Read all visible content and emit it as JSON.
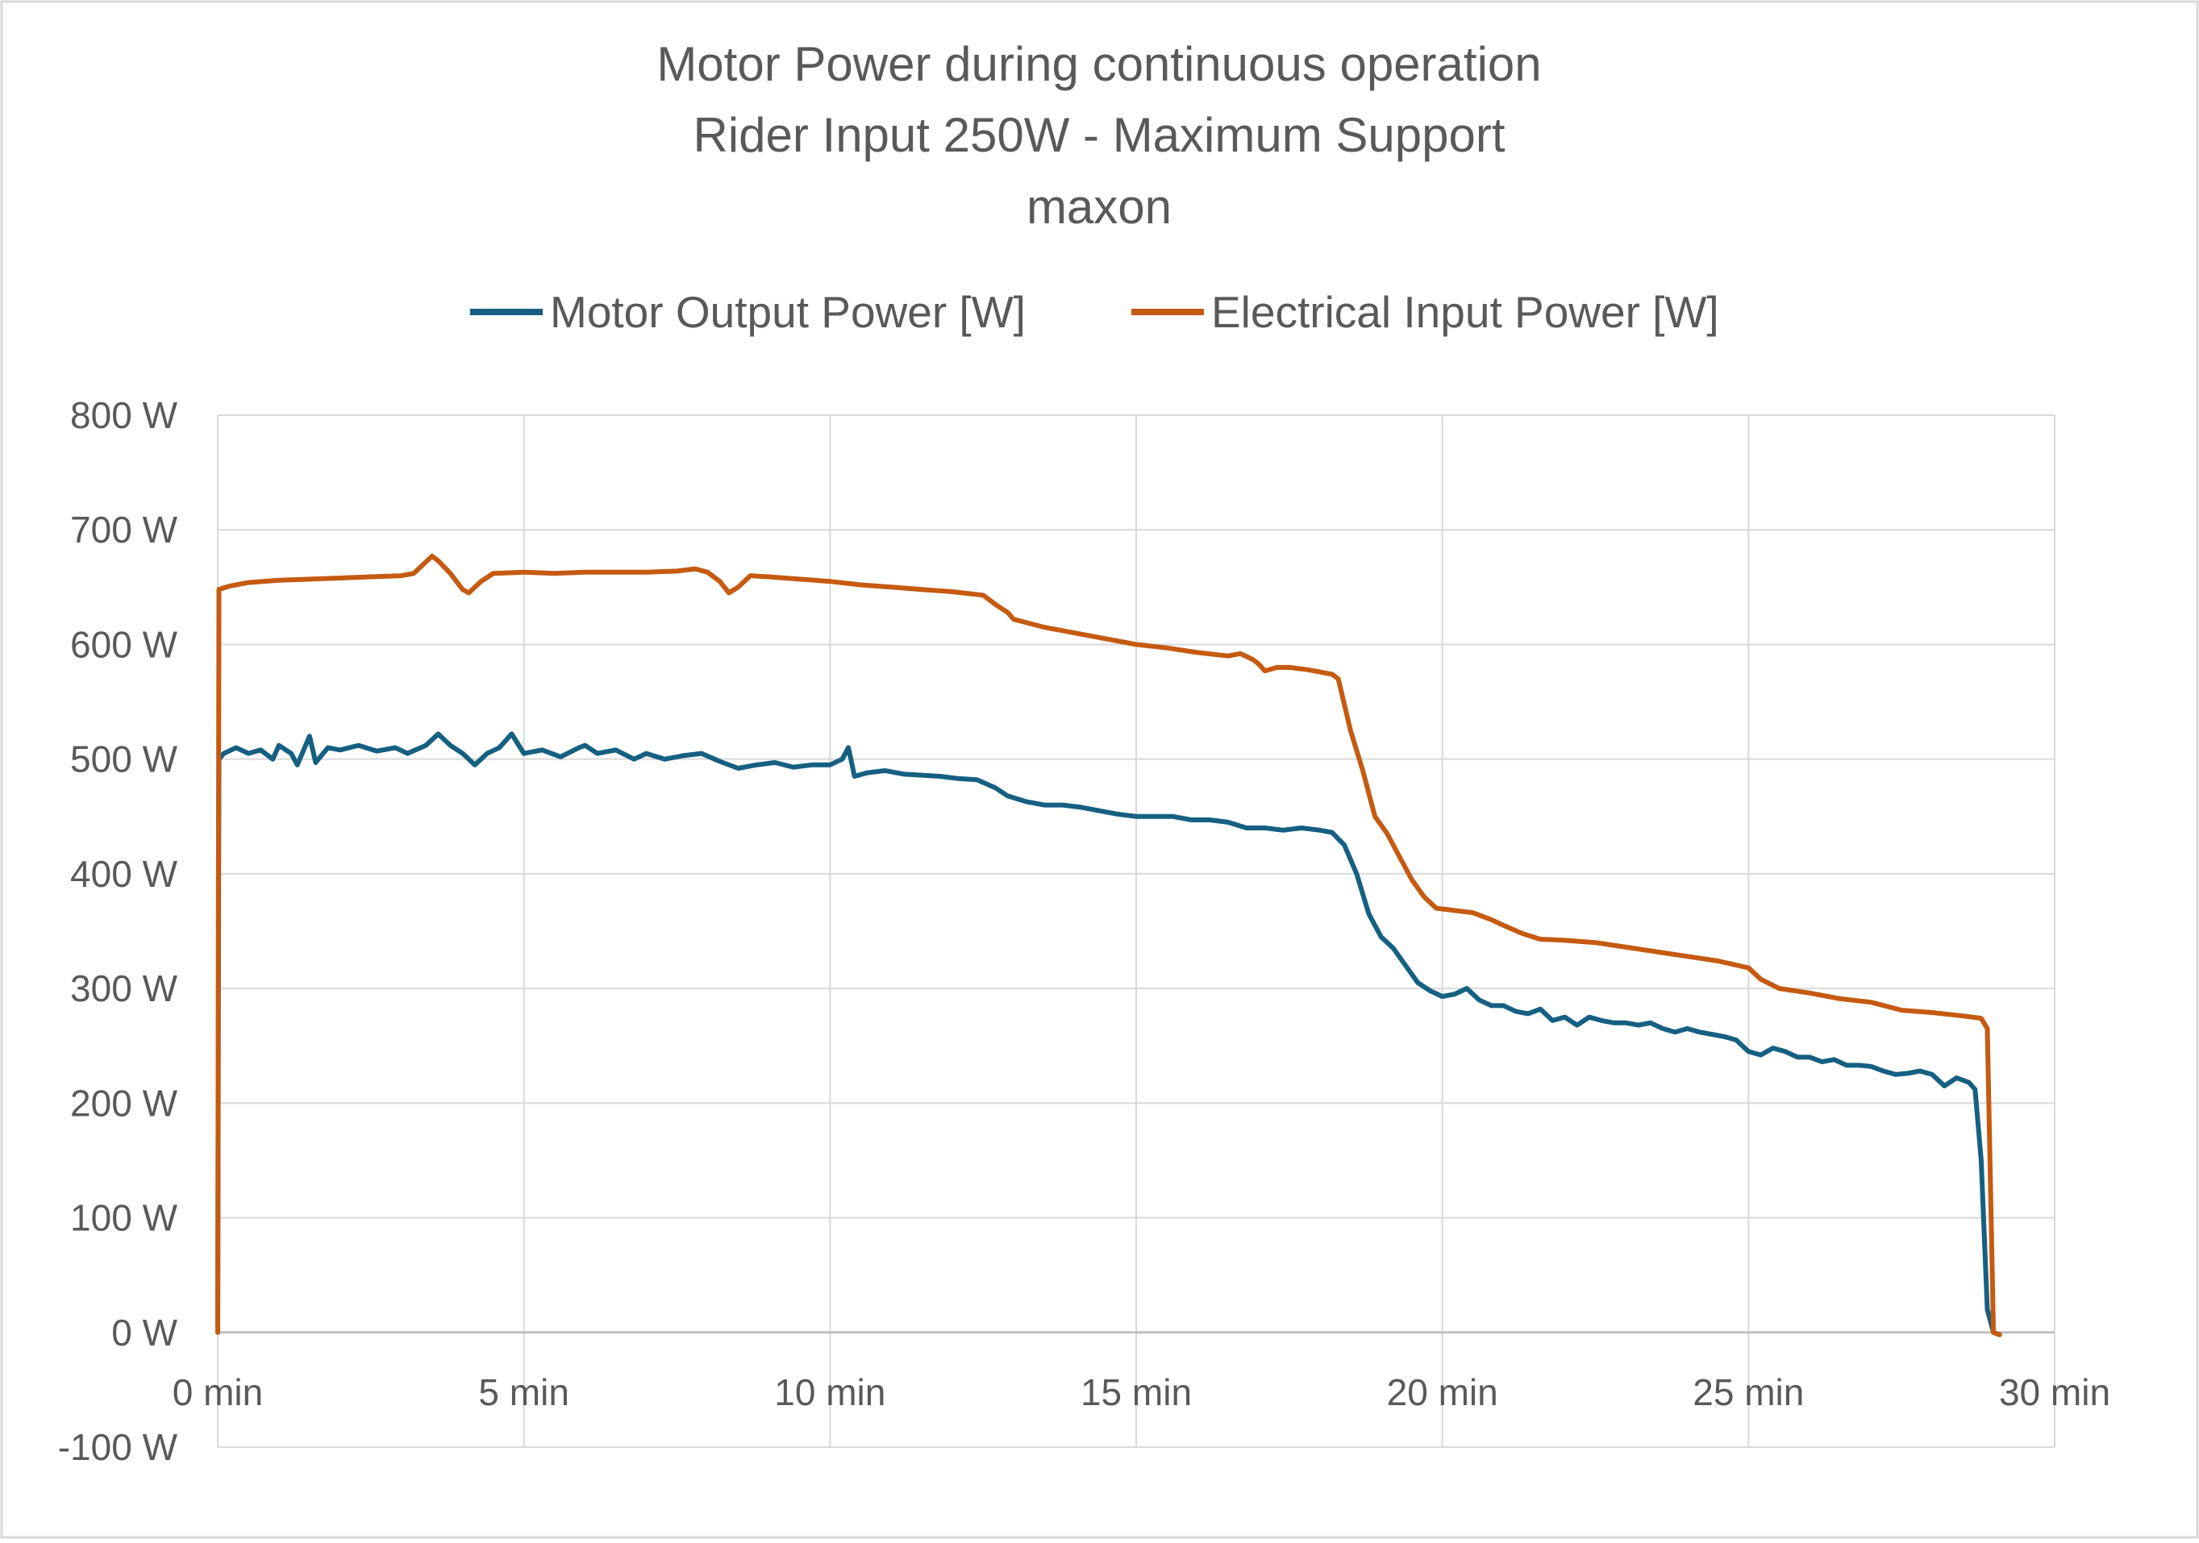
{
  "chart_data": {
    "type": "line",
    "title": [
      "Motor Power during continuous operation",
      "Rider Input 250W - Maximum Support",
      "maxon"
    ],
    "xlabel": "",
    "ylabel": "",
    "x_unit": "min",
    "y_unit": "W",
    "xlim": [
      0,
      30
    ],
    "ylim": [
      -100,
      800
    ],
    "x_ticks": [
      "0 min",
      "5 min",
      "10 min",
      "15 min",
      "20 min",
      "25 min",
      "30 min"
    ],
    "y_ticks": [
      "800 W",
      "700 W",
      "600 W",
      "500 W",
      "400 W",
      "300 W",
      "200 W",
      "100 W",
      "0 W",
      "-100 W"
    ],
    "grid": true,
    "legend_position": "top-center",
    "series": [
      {
        "name": "Motor Output Power [W]",
        "color": "#156082",
        "points": [
          [
            0.0,
            0
          ],
          [
            0.02,
            500
          ],
          [
            0.1,
            505
          ],
          [
            0.3,
            510
          ],
          [
            0.5,
            505
          ],
          [
            0.7,
            508
          ],
          [
            0.9,
            500
          ],
          [
            1.0,
            512
          ],
          [
            1.2,
            505
          ],
          [
            1.3,
            495
          ],
          [
            1.5,
            520
          ],
          [
            1.6,
            497
          ],
          [
            1.8,
            510
          ],
          [
            2.0,
            508
          ],
          [
            2.3,
            512
          ],
          [
            2.6,
            507
          ],
          [
            2.9,
            510
          ],
          [
            3.1,
            505
          ],
          [
            3.4,
            512
          ],
          [
            3.6,
            522
          ],
          [
            3.8,
            512
          ],
          [
            4.0,
            505
          ],
          [
            4.2,
            495
          ],
          [
            4.4,
            505
          ],
          [
            4.6,
            510
          ],
          [
            4.8,
            522
          ],
          [
            5.0,
            505
          ],
          [
            5.3,
            508
          ],
          [
            5.6,
            502
          ],
          [
            5.9,
            510
          ],
          [
            6.0,
            512
          ],
          [
            6.2,
            505
          ],
          [
            6.5,
            508
          ],
          [
            6.8,
            500
          ],
          [
            7.0,
            505
          ],
          [
            7.3,
            500
          ],
          [
            7.6,
            503
          ],
          [
            7.9,
            505
          ],
          [
            8.2,
            498
          ],
          [
            8.5,
            492
          ],
          [
            8.8,
            495
          ],
          [
            9.1,
            497
          ],
          [
            9.4,
            493
          ],
          [
            9.7,
            495
          ],
          [
            10.0,
            495
          ],
          [
            10.2,
            500
          ],
          [
            10.3,
            510
          ],
          [
            10.4,
            485
          ],
          [
            10.6,
            488
          ],
          [
            10.9,
            490
          ],
          [
            11.2,
            487
          ],
          [
            11.5,
            486
          ],
          [
            11.8,
            485
          ],
          [
            12.1,
            483
          ],
          [
            12.4,
            482
          ],
          [
            12.7,
            475
          ],
          [
            12.9,
            468
          ],
          [
            13.2,
            463
          ],
          [
            13.5,
            460
          ],
          [
            13.8,
            460
          ],
          [
            14.1,
            458
          ],
          [
            14.4,
            455
          ],
          [
            14.7,
            452
          ],
          [
            15.0,
            450
          ],
          [
            15.3,
            450
          ],
          [
            15.6,
            450
          ],
          [
            15.9,
            447
          ],
          [
            16.2,
            447
          ],
          [
            16.5,
            445
          ],
          [
            16.8,
            440
          ],
          [
            17.1,
            440
          ],
          [
            17.4,
            438
          ],
          [
            17.7,
            440
          ],
          [
            18.0,
            438
          ],
          [
            18.2,
            436
          ],
          [
            18.4,
            425
          ],
          [
            18.6,
            400
          ],
          [
            18.8,
            365
          ],
          [
            19.0,
            345
          ],
          [
            19.2,
            335
          ],
          [
            19.4,
            320
          ],
          [
            19.6,
            305
          ],
          [
            19.8,
            298
          ],
          [
            20.0,
            293
          ],
          [
            20.2,
            295
          ],
          [
            20.4,
            300
          ],
          [
            20.6,
            290
          ],
          [
            20.8,
            285
          ],
          [
            21.0,
            285
          ],
          [
            21.2,
            280
          ],
          [
            21.4,
            278
          ],
          [
            21.6,
            282
          ],
          [
            21.8,
            272
          ],
          [
            22.0,
            275
          ],
          [
            22.2,
            268
          ],
          [
            22.4,
            275
          ],
          [
            22.6,
            272
          ],
          [
            22.8,
            270
          ],
          [
            23.0,
            270
          ],
          [
            23.2,
            268
          ],
          [
            23.4,
            270
          ],
          [
            23.6,
            265
          ],
          [
            23.8,
            262
          ],
          [
            24.0,
            265
          ],
          [
            24.2,
            262
          ],
          [
            24.4,
            260
          ],
          [
            24.6,
            258
          ],
          [
            24.8,
            255
          ],
          [
            25.0,
            245
          ],
          [
            25.2,
            242
          ],
          [
            25.4,
            248
          ],
          [
            25.6,
            245
          ],
          [
            25.8,
            240
          ],
          [
            26.0,
            240
          ],
          [
            26.2,
            236
          ],
          [
            26.4,
            238
          ],
          [
            26.6,
            233
          ],
          [
            26.8,
            233
          ],
          [
            27.0,
            232
          ],
          [
            27.2,
            228
          ],
          [
            27.4,
            225
          ],
          [
            27.6,
            226
          ],
          [
            27.8,
            228
          ],
          [
            28.0,
            225
          ],
          [
            28.2,
            215
          ],
          [
            28.4,
            222
          ],
          [
            28.6,
            218
          ],
          [
            28.7,
            212
          ],
          [
            28.8,
            150
          ],
          [
            28.9,
            20
          ],
          [
            29.0,
            0
          ],
          [
            29.1,
            -2
          ]
        ]
      },
      {
        "name": "Electrical Input Power [W]",
        "color": "#C55A11",
        "points": [
          [
            0.0,
            0
          ],
          [
            0.02,
            648
          ],
          [
            0.2,
            651
          ],
          [
            0.5,
            654
          ],
          [
            1.0,
            656
          ],
          [
            1.5,
            657
          ],
          [
            2.0,
            658
          ],
          [
            2.5,
            659
          ],
          [
            3.0,
            660
          ],
          [
            3.2,
            662
          ],
          [
            3.4,
            672
          ],
          [
            3.5,
            677
          ],
          [
            3.6,
            673
          ],
          [
            3.8,
            662
          ],
          [
            4.0,
            648
          ],
          [
            4.1,
            645
          ],
          [
            4.3,
            655
          ],
          [
            4.5,
            662
          ],
          [
            5.0,
            663
          ],
          [
            5.5,
            662
          ],
          [
            6.0,
            663
          ],
          [
            6.5,
            663
          ],
          [
            7.0,
            663
          ],
          [
            7.5,
            664
          ],
          [
            7.8,
            666
          ],
          [
            8.0,
            663
          ],
          [
            8.2,
            655
          ],
          [
            8.35,
            645
          ],
          [
            8.5,
            650
          ],
          [
            8.7,
            660
          ],
          [
            9.0,
            659
          ],
          [
            9.5,
            657
          ],
          [
            10.0,
            655
          ],
          [
            10.5,
            652
          ],
          [
            11.0,
            650
          ],
          [
            11.5,
            648
          ],
          [
            12.0,
            646
          ],
          [
            12.5,
            643
          ],
          [
            12.7,
            635
          ],
          [
            12.9,
            628
          ],
          [
            13.0,
            622
          ],
          [
            13.5,
            615
          ],
          [
            14.0,
            610
          ],
          [
            14.5,
            605
          ],
          [
            15.0,
            600
          ],
          [
            15.5,
            597
          ],
          [
            16.0,
            593
          ],
          [
            16.5,
            590
          ],
          [
            16.7,
            592
          ],
          [
            16.9,
            587
          ],
          [
            17.0,
            583
          ],
          [
            17.1,
            577
          ],
          [
            17.3,
            580
          ],
          [
            17.5,
            580
          ],
          [
            17.8,
            578
          ],
          [
            18.0,
            576
          ],
          [
            18.2,
            574
          ],
          [
            18.3,
            570
          ],
          [
            18.5,
            525
          ],
          [
            18.7,
            490
          ],
          [
            18.9,
            450
          ],
          [
            19.1,
            435
          ],
          [
            19.3,
            415
          ],
          [
            19.5,
            395
          ],
          [
            19.7,
            380
          ],
          [
            19.9,
            370
          ],
          [
            20.2,
            368
          ],
          [
            20.5,
            366
          ],
          [
            20.8,
            360
          ],
          [
            21.0,
            355
          ],
          [
            21.3,
            348
          ],
          [
            21.6,
            343
          ],
          [
            22.0,
            342
          ],
          [
            22.5,
            340
          ],
          [
            23.0,
            336
          ],
          [
            23.5,
            332
          ],
          [
            24.0,
            328
          ],
          [
            24.5,
            324
          ],
          [
            25.0,
            318
          ],
          [
            25.2,
            308
          ],
          [
            25.5,
            300
          ],
          [
            26.0,
            296
          ],
          [
            26.5,
            291
          ],
          [
            27.0,
            288
          ],
          [
            27.5,
            281
          ],
          [
            28.0,
            279
          ],
          [
            28.5,
            276
          ],
          [
            28.8,
            274
          ],
          [
            28.9,
            265
          ],
          [
            29.0,
            0
          ],
          [
            29.1,
            -2
          ]
        ]
      }
    ]
  }
}
